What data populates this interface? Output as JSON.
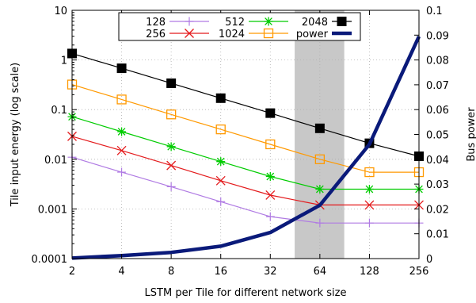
{
  "chart_data": {
    "type": "line",
    "xlabel": "LSTM per Tile for different network size",
    "ylabel_left": "Tile input energy (log scale)",
    "ylabel_right": "Bus power",
    "x": [
      2,
      4,
      8,
      16,
      32,
      64,
      128,
      256
    ],
    "x_tick_labels": [
      "2",
      "4",
      "8",
      "16",
      "32",
      "64",
      "128",
      "256"
    ],
    "x_scale": "log2",
    "y_left_scale": "log10",
    "y_left_range": [
      0.0001,
      10
    ],
    "y_left_tick_labels": [
      "0.0001",
      "0.001",
      "0.01",
      "0.1",
      "1",
      "10"
    ],
    "y_right_range": [
      0,
      0.1
    ],
    "y_right_tick_labels": [
      "0",
      "0.01",
      "0.02",
      "0.03",
      "0.04",
      "0.05",
      "0.06",
      "0.07",
      "0.08",
      "0.09",
      "0.1"
    ],
    "grid": true,
    "legend_position": "top",
    "highlight_band_x": [
      45,
      90
    ],
    "series": [
      {
        "name": "128",
        "axis": "left",
        "color": "#b07be3",
        "marker": "plus",
        "values": [
          0.011,
          0.0055,
          0.0028,
          0.0014,
          0.0007,
          0.00052,
          0.00052,
          0.00052
        ]
      },
      {
        "name": "256",
        "axis": "left",
        "color": "#e41a1c",
        "marker": "x",
        "values": [
          0.029,
          0.015,
          0.0075,
          0.0037,
          0.0019,
          0.0012,
          0.0012,
          0.0012
        ]
      },
      {
        "name": "512",
        "axis": "left",
        "color": "#00cc00",
        "marker": "asterisk",
        "values": [
          0.072,
          0.036,
          0.018,
          0.009,
          0.0045,
          0.0025,
          0.0025,
          0.0025
        ]
      },
      {
        "name": "1024",
        "axis": "left",
        "color": "#ff9900",
        "marker": "open-square",
        "values": [
          0.32,
          0.16,
          0.08,
          0.04,
          0.02,
          0.01,
          0.0055,
          0.0055
        ]
      },
      {
        "name": "2048",
        "axis": "left",
        "color": "#000000",
        "marker": "filled-square",
        "values": [
          1.35,
          0.68,
          0.34,
          0.17,
          0.085,
          0.042,
          0.021,
          0.0115
        ]
      },
      {
        "name": "power",
        "axis": "right",
        "color": "#0a1a7a",
        "marker": "none",
        "values": [
          0.0002,
          0.0012,
          0.0025,
          0.005,
          0.0105,
          0.0215,
          0.046,
          0.0895
        ]
      }
    ]
  }
}
